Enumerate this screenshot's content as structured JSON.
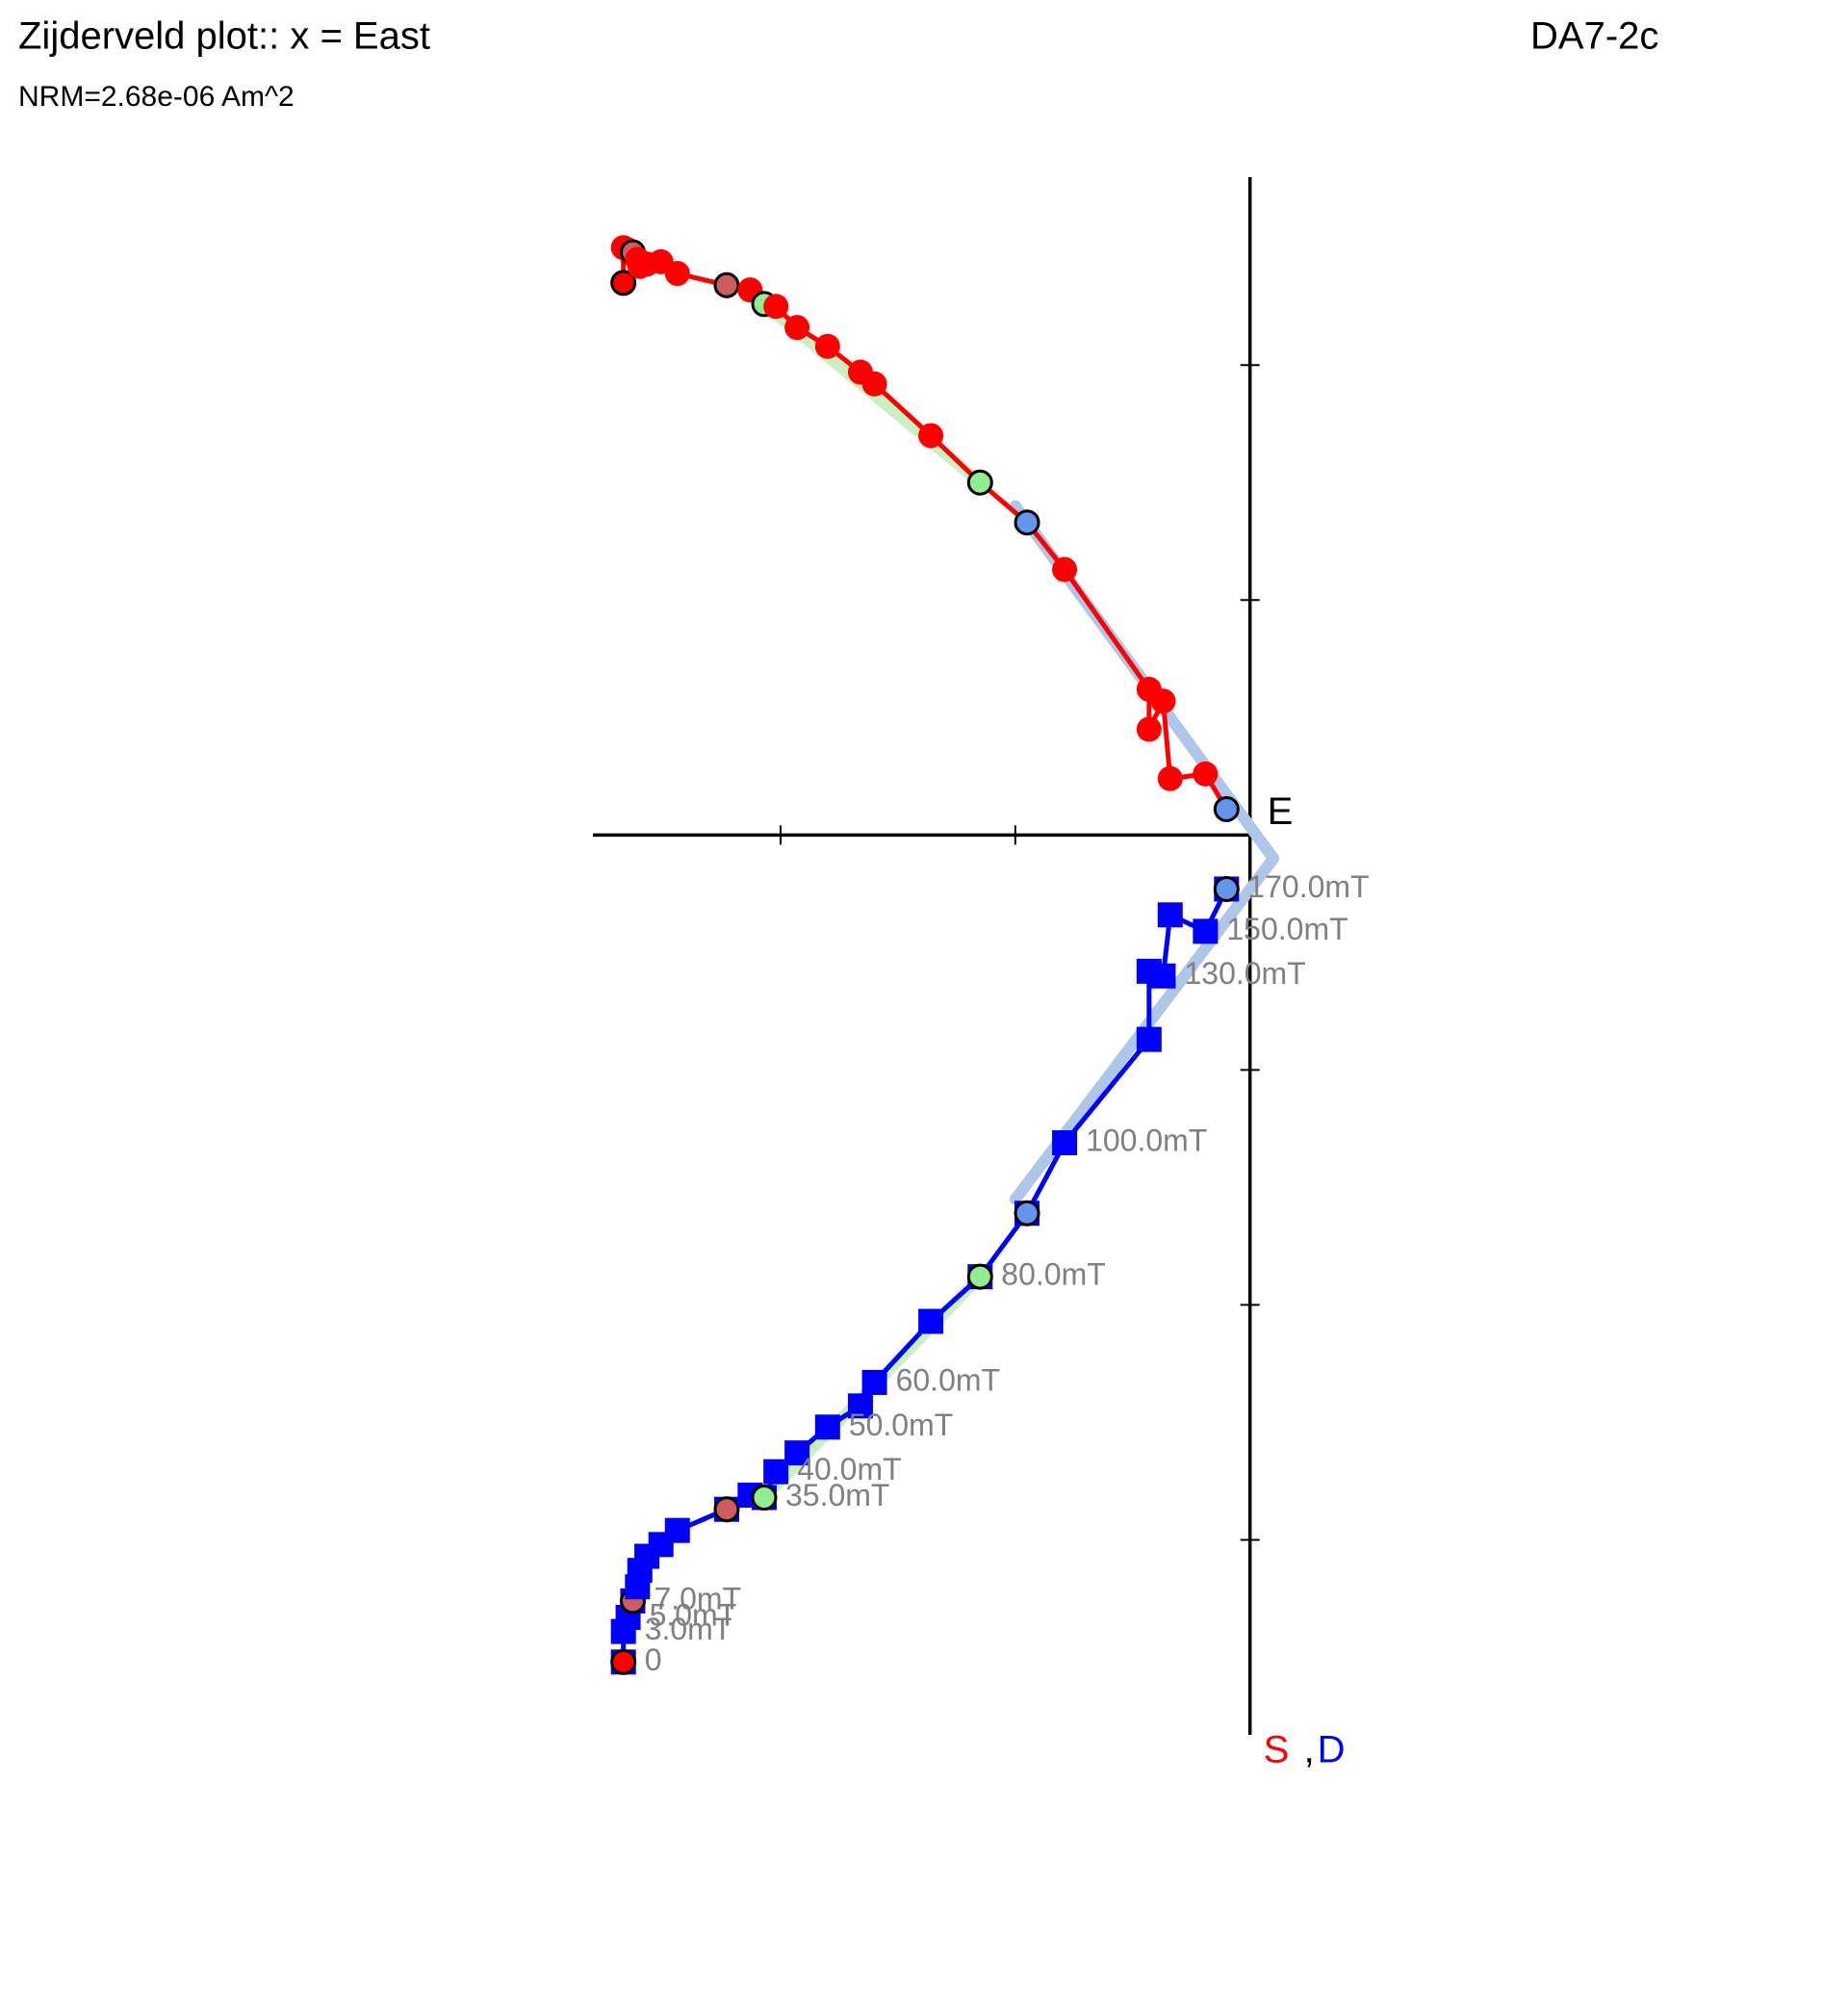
{
  "chart_data": {
    "type": "zijderveld",
    "title": "Zijderveld plot:: x = East",
    "specimen": "DA7-2c",
    "subtitle": "NRM=2.68e-06 Am^2",
    "x_axis_label": "E",
    "horizontal_label": "S",
    "label_separator": ",",
    "vertical_label": "D",
    "xlim": [
      -2.8,
      0.03
    ],
    "ylim": [
      -3.83,
      2.8
    ],
    "xticks": [
      -2,
      -1
    ],
    "yticks": [
      -3,
      -2,
      -1,
      1,
      2
    ],
    "x": [
      -2.67,
      -2.67,
      -2.65,
      -2.63,
      -2.61,
      -2.6,
      -2.57,
      -2.51,
      -2.44,
      -2.23,
      -2.13,
      -2.07,
      -2.02,
      -1.93,
      -1.8,
      -1.66,
      -1.6,
      -1.36,
      -1.15,
      -0.95,
      -0.79,
      -0.43,
      -0.43,
      -0.37,
      -0.34,
      -0.19,
      -0.1
    ],
    "series": [
      {
        "name": "S",
        "color": "#ff0000",
        "marker": "circle",
        "values": [
          2.35,
          2.5,
          2.49,
          2.48,
          2.45,
          2.42,
          2.43,
          2.44,
          2.39,
          2.34,
          2.32,
          2.26,
          2.25,
          2.16,
          2.08,
          1.97,
          1.92,
          1.7,
          1.5,
          1.33,
          1.13,
          0.62,
          0.45,
          0.57,
          0.24,
          0.26,
          0.11
        ]
      },
      {
        "name": "D",
        "color": "#0000ff",
        "marker": "square",
        "values": [
          -3.52,
          -3.39,
          -3.33,
          -3.26,
          -3.2,
          -3.13,
          -3.07,
          -3.02,
          -2.96,
          -2.87,
          -2.81,
          -2.82,
          -2.71,
          -2.63,
          -2.52,
          -2.43,
          -2.33,
          -2.07,
          -1.88,
          -1.61,
          -1.31,
          -0.87,
          -0.58,
          -0.6,
          -0.34,
          -0.41,
          -0.23
        ]
      }
    ],
    "step_labels": [
      "0",
      "3.0mT",
      "5.0mT",
      "7.0mT",
      null,
      null,
      null,
      null,
      null,
      null,
      null,
      "35.0mT",
      "40.0mT",
      null,
      "50.0mT",
      null,
      "60.0mT",
      null,
      "80.0mT",
      null,
      "100.0mT",
      null,
      null,
      "130.0mT",
      null,
      "150.0mT",
      "170.0mT"
    ],
    "marker_colors": [
      "#ff0000",
      null,
      null,
      "#cd5c5c",
      null,
      null,
      null,
      null,
      null,
      "#cd5c5c",
      null,
      "#90ee90",
      null,
      null,
      null,
      null,
      null,
      null,
      "#90ee90",
      "#6495ed",
      null,
      null,
      null,
      null,
      null,
      null,
      "#6495ed"
    ],
    "fits": [
      {
        "color": "#aec7e8",
        "x": [
          -1.0,
          0.1
        ],
        "y": [
          1.4,
          -0.1
        ]
      },
      {
        "color": "#aec7e8",
        "x": [
          -1.0,
          0.1
        ],
        "y": [
          -1.55,
          -0.1
        ]
      },
      {
        "color": "#c8f0c0",
        "x": [
          -2.07,
          -1.15
        ],
        "y": [
          2.26,
          1.5
        ]
      },
      {
        "color": "#c8f0c0",
        "x": [
          -2.07,
          -1.15
        ],
        "y": [
          -2.82,
          -1.88
        ]
      }
    ],
    "label_color": "#808080"
  }
}
